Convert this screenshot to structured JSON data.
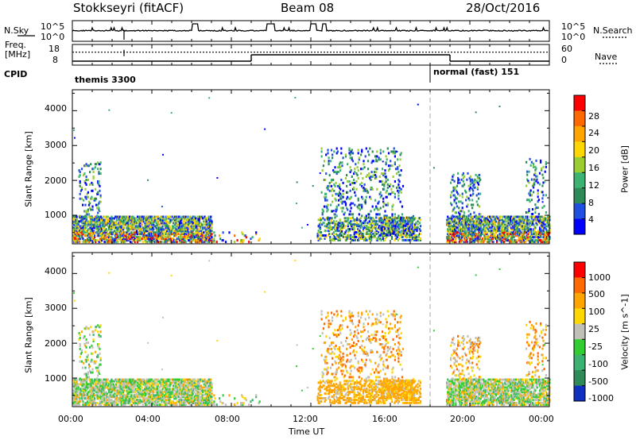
{
  "header": {
    "radar": "Stokkseyri (fitACF)",
    "beam": "Beam 08",
    "date": "28/Oct/2016"
  },
  "top_panel": {
    "nsky_label": "N.Sky",
    "nsky_ticks": [
      "10^5",
      "10^0"
    ],
    "nsearch_label": "N.Search",
    "nsearch_ticks": [
      "10^5",
      "10^0"
    ],
    "freq_label": "Freq.",
    "freq_unit": "[MHz]",
    "freq_ticks": [
      "18",
      "8"
    ],
    "nave_label": "Nave",
    "nave_ticks": [
      "60",
      "0"
    ],
    "cpid_label": "CPID",
    "cpid_entries": [
      {
        "name": "themis 3300",
        "start_hour": 0
      },
      {
        "name": "normal (fast) 151",
        "start_hour": 18
      }
    ]
  },
  "chart_data": {
    "type": "heatmap",
    "x_range_hours": [
      0,
      24
    ],
    "x_ticks": [
      "00:00",
      "04:00",
      "08:00",
      "12:00",
      "16:00",
      "20:00",
      "00:00"
    ],
    "xlabel": "Time UT",
    "ylabel": "Slant Range [km]",
    "ylim": [
      180,
      4600
    ],
    "y_ticks": [
      "1000",
      "2000",
      "3000",
      "4000"
    ],
    "mode_change_hour": 18,
    "freq_mhz": [
      {
        "from": 0,
        "to": 9,
        "value": 8.5
      },
      {
        "from": 9,
        "to": 19,
        "value": 12.5
      },
      {
        "from": 19,
        "to": 24,
        "value": 8.5
      }
    ],
    "nave_level": 37,
    "power": {
      "colorbar_label": "Power [dB]",
      "colorbar_ticks": [
        "28",
        "24",
        "20",
        "16",
        "12",
        "8",
        "4"
      ],
      "colors": [
        "#0000ff",
        "#2050e0",
        "#2e8b57",
        "#3cb371",
        "#9acd32",
        "#ffd700",
        "#ffa500",
        "#ff6a00",
        "#ff0000"
      ],
      "range": [
        0,
        32
      ]
    },
    "velocity": {
      "colorbar_label": "Velocity [m s^-1]",
      "colorbar_ticks": [
        "1000",
        "500",
        "100",
        "25",
        "-25",
        "-100",
        "-500",
        "-1000"
      ],
      "colors": [
        "#1030c0",
        "#2e8b57",
        "#3cb371",
        "#32cd32",
        "#c0c0b8",
        "#ffd700",
        "#ffa500",
        "#ff6a00",
        "#ff0000"
      ]
    }
  }
}
